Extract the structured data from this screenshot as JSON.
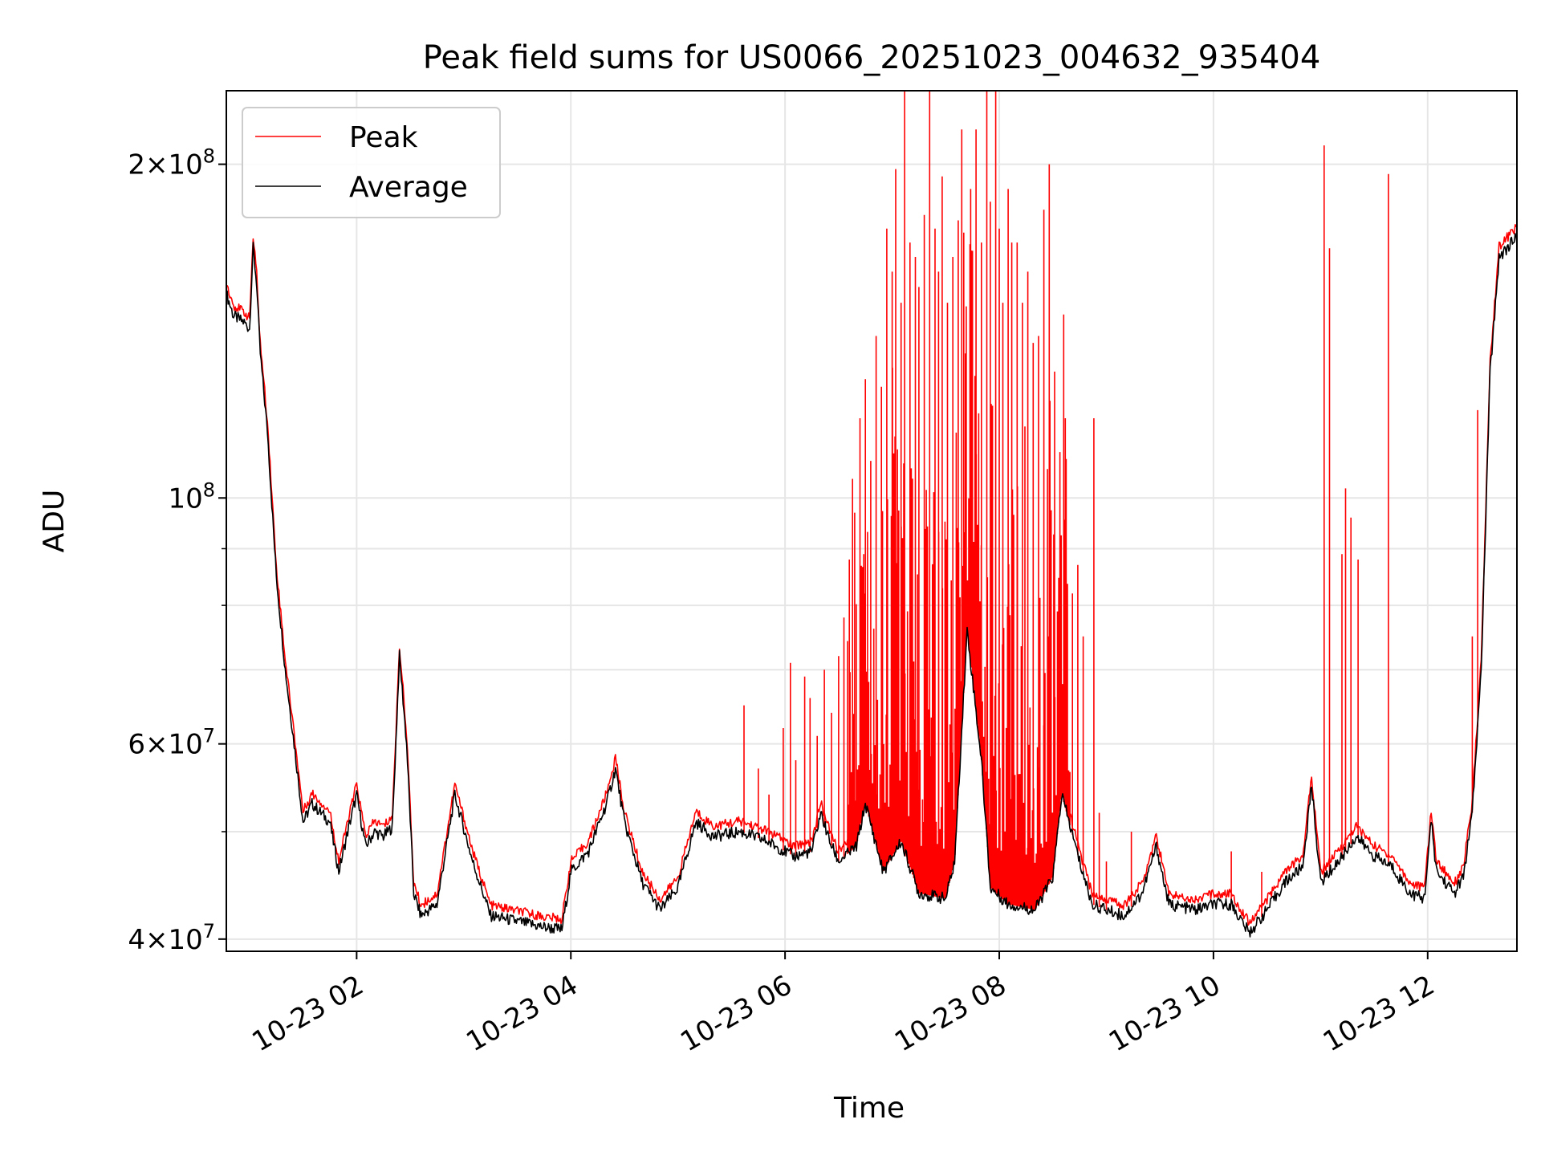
{
  "chart_data": {
    "type": "line",
    "title": "Peak field sums for US0066_20251023_004632_935404",
    "xlabel": "Time",
    "ylabel": "ADU",
    "yscale": "log",
    "ylim": [
      39000000,
      233000000
    ],
    "xlim": [
      "10-23 00:47",
      "10-23 12:50"
    ],
    "x_ticks": [
      {
        "value": "10-23 02:00",
        "label": "10-23 02"
      },
      {
        "value": "10-23 04:00",
        "label": "10-23 04"
      },
      {
        "value": "10-23 06:00",
        "label": "10-23 06"
      },
      {
        "value": "10-23 08:00",
        "label": "10-23 08"
      },
      {
        "value": "10-23 10:00",
        "label": "10-23 10"
      },
      {
        "value": "10-23 12:00",
        "label": "10-23 12"
      }
    ],
    "y_major_ticks": [
      {
        "value": 40000000,
        "mant": "4",
        "exp": "7"
      },
      {
        "value": 60000000,
        "mant": "6",
        "exp": "7"
      },
      {
        "value": 100000000,
        "mant": "",
        "exp": "8"
      },
      {
        "value": 200000000,
        "mant": "2",
        "exp": "8"
      }
    ],
    "y_minor_ticks": [
      50000000,
      70000000,
      80000000,
      90000000
    ],
    "grid": true,
    "legend": {
      "position": "top-left",
      "entries": [
        "Peak",
        "Average"
      ]
    },
    "colors": {
      "Peak": "#ff0000",
      "Average": "#000000"
    },
    "series": [
      {
        "name": "Average",
        "points": [
          [
            "10-23 00:47",
            153000000
          ],
          [
            "10-23 00:51",
            146000000
          ],
          [
            "10-23 00:57",
            144000000
          ],
          [
            "10-23 01:00",
            142000000
          ],
          [
            "10-23 01:02",
            168000000
          ],
          [
            "10-23 01:04",
            156000000
          ],
          [
            "10-23 01:06",
            135000000
          ],
          [
            "10-23 01:10",
            115000000
          ],
          [
            "10-23 01:15",
            85000000
          ],
          [
            "10-23 01:20",
            70000000
          ],
          [
            "10-23 01:25",
            60000000
          ],
          [
            "10-23 01:30",
            51000000
          ],
          [
            "10-23 01:35",
            53000000
          ],
          [
            "10-23 01:40",
            52000000
          ],
          [
            "10-23 01:45",
            51000000
          ],
          [
            "10-23 01:50",
            46000000
          ],
          [
            "10-23 01:55",
            50000000
          ],
          [
            "10-23 02:00",
            54000000
          ],
          [
            "10-23 02:05",
            48500000
          ],
          [
            "10-23 02:10",
            50000000
          ],
          [
            "10-23 02:15",
            49500000
          ],
          [
            "10-23 02:20",
            50500000
          ],
          [
            "10-23 02:24",
            72000000
          ],
          [
            "10-23 02:28",
            60000000
          ],
          [
            "10-23 02:32",
            44000000
          ],
          [
            "10-23 02:36",
            42000000
          ],
          [
            "10-23 02:45",
            43000000
          ],
          [
            "10-23 02:55",
            54000000
          ],
          [
            "10-23 03:05",
            47000000
          ],
          [
            "10-23 03:15",
            42000000
          ],
          [
            "10-23 03:30",
            41500000
          ],
          [
            "10-23 03:45",
            41000000
          ],
          [
            "10-23 03:55",
            40800000
          ],
          [
            "10-23 04:00",
            46000000
          ],
          [
            "10-23 04:10",
            48000000
          ],
          [
            "10-23 04:20",
            53000000
          ],
          [
            "10-23 04:25",
            57000000
          ],
          [
            "10-23 04:30",
            51000000
          ],
          [
            "10-23 04:40",
            45000000
          ],
          [
            "10-23 04:50",
            42500000
          ],
          [
            "10-23 05:00",
            44500000
          ],
          [
            "10-23 05:10",
            51000000
          ],
          [
            "10-23 05:20",
            49500000
          ],
          [
            "10-23 05:35",
            50000000
          ],
          [
            "10-23 05:50",
            49000000
          ],
          [
            "10-23 06:05",
            47500000
          ],
          [
            "10-23 06:15",
            48000000
          ],
          [
            "10-23 06:20",
            52000000
          ],
          [
            "10-23 06:25",
            49000000
          ],
          [
            "10-23 06:30",
            47000000
          ],
          [
            "10-23 06:40",
            48500000
          ],
          [
            "10-23 06:45",
            53000000
          ],
          [
            "10-23 06:55",
            46000000
          ],
          [
            "10-23 07:05",
            49000000
          ],
          [
            "10-23 07:15",
            44000000
          ],
          [
            "10-23 07:30",
            43500000
          ],
          [
            "10-23 07:35",
            47000000
          ],
          [
            "10-23 07:42",
            76000000
          ],
          [
            "10-23 07:50",
            58000000
          ],
          [
            "10-23 07:55",
            44500000
          ],
          [
            "10-23 08:05",
            43000000
          ],
          [
            "10-23 08:20",
            42500000
          ],
          [
            "10-23 08:30",
            45500000
          ],
          [
            "10-23 08:35",
            54000000
          ],
          [
            "10-23 08:45",
            47000000
          ],
          [
            "10-23 08:52",
            43000000
          ],
          [
            "10-23 09:00",
            42500000
          ],
          [
            "10-23 09:10",
            42000000
          ],
          [
            "10-23 09:20",
            44000000
          ],
          [
            "10-23 09:28",
            48500000
          ],
          [
            "10-23 09:35",
            43000000
          ],
          [
            "10-23 09:50",
            42500000
          ],
          [
            "10-23 10:00",
            43000000
          ],
          [
            "10-23 10:10",
            43000000
          ],
          [
            "10-23 10:20",
            40500000
          ],
          [
            "10-23 10:30",
            42500000
          ],
          [
            "10-23 10:40",
            45000000
          ],
          [
            "10-23 10:50",
            46500000
          ],
          [
            "10-23 10:55",
            55000000
          ],
          [
            "10-23 11:00",
            45000000
          ],
          [
            "10-23 11:10",
            47000000
          ],
          [
            "10-23 11:20",
            49500000
          ],
          [
            "10-23 11:30",
            47500000
          ],
          [
            "10-23 11:40",
            46500000
          ],
          [
            "10-23 11:50",
            44000000
          ],
          [
            "10-23 11:58",
            43500000
          ],
          [
            "10-23 12:02",
            51000000
          ],
          [
            "10-23 12:05",
            46000000
          ],
          [
            "10-23 12:15",
            44000000
          ],
          [
            "10-23 12:20",
            45500000
          ],
          [
            "10-23 12:25",
            52000000
          ],
          [
            "10-23 12:30",
            70000000
          ],
          [
            "10-23 12:35",
            130000000
          ],
          [
            "10-23 12:40",
            165000000
          ],
          [
            "10-23 12:50",
            172000000
          ]
        ]
      },
      {
        "name": "Peak",
        "spikes": [
          [
            "10-23 05:37",
            65000000
          ],
          [
            "10-23 05:45",
            57000000
          ],
          [
            "10-23 05:51",
            54000000
          ],
          [
            "10-23 05:59",
            62000000
          ],
          [
            "10-23 06:03",
            71000000
          ],
          [
            "10-23 06:06",
            58000000
          ],
          [
            "10-23 06:11",
            69000000
          ],
          [
            "10-23 06:14",
            66000000
          ],
          [
            "10-23 06:18",
            61000000
          ],
          [
            "10-23 06:22",
            70000000
          ],
          [
            "10-23 06:26",
            64000000
          ],
          [
            "10-23 06:30",
            72000000
          ],
          [
            "10-23 06:33",
            78000000
          ],
          [
            "10-23 06:36",
            88000000
          ],
          [
            "10-23 06:39",
            97000000
          ],
          [
            "10-23 06:42",
            118000000
          ],
          [
            "10-23 06:45",
            128000000
          ],
          [
            "10-23 06:48",
            108000000
          ],
          [
            "10-23 06:51",
            140000000
          ],
          [
            "10-23 06:54",
            126000000
          ],
          [
            "10-23 06:57",
            175000000
          ],
          [
            "10-23 07:00",
            160000000
          ],
          [
            "10-23 07:02",
            198000000
          ],
          [
            "10-23 07:05",
            150000000
          ],
          [
            "10-23 07:07",
            233000000
          ],
          [
            "10-23 07:10",
            170000000
          ],
          [
            "10-23 07:13",
            165000000
          ],
          [
            "10-23 07:15",
            155000000
          ],
          [
            "10-23 07:18",
            180000000
          ],
          [
            "10-23 07:21",
            233000000
          ],
          [
            "10-23 07:24",
            175000000
          ],
          [
            "10-23 07:26",
            160000000
          ],
          [
            "10-23 07:28",
            195000000
          ],
          [
            "10-23 07:31",
            150000000
          ],
          [
            "10-23 07:34",
            165000000
          ],
          [
            "10-23 07:37",
            178000000
          ],
          [
            "10-23 07:39",
            215000000
          ],
          [
            "10-23 07:41",
            135000000
          ],
          [
            "10-23 07:44",
            190000000
          ],
          [
            "10-23 07:47",
            215000000
          ],
          [
            "10-23 07:50",
            170000000
          ],
          [
            "10-23 07:53",
            233000000
          ],
          [
            "10-23 07:55",
            185000000
          ],
          [
            "10-23 07:58",
            233000000
          ],
          [
            "10-23 08:00",
            175000000
          ],
          [
            "10-23 08:02",
            150000000
          ],
          [
            "10-23 08:05",
            190000000
          ],
          [
            "10-23 08:07",
            170000000
          ],
          [
            "10-23 08:10",
            170000000
          ],
          [
            "10-23 08:13",
            150000000
          ],
          [
            "10-23 08:16",
            160000000
          ],
          [
            "10-23 08:19",
            138000000
          ],
          [
            "10-23 08:22",
            140000000
          ],
          [
            "10-23 08:25",
            182000000
          ],
          [
            "10-23 08:28",
            200000000
          ],
          [
            "10-23 08:31",
            130000000
          ],
          [
            "10-23 08:34",
            110000000
          ],
          [
            "10-23 08:37",
            118000000
          ],
          [
            "10-23 08:41",
            82000000
          ],
          [
            "10-23 08:44",
            87000000
          ],
          [
            "10-23 08:47",
            75000000
          ],
          [
            "10-23 08:53",
            118000000
          ],
          [
            "10-23 08:56",
            52000000
          ],
          [
            "10-23 09:00",
            47000000
          ],
          [
            "10-23 09:14",
            50000000
          ],
          [
            "10-23 10:10",
            48000000
          ],
          [
            "10-23 10:27",
            46000000
          ],
          [
            "10-23 11:02",
            208000000
          ],
          [
            "10-23 11:05",
            168000000
          ],
          [
            "10-23 11:12",
            89000000
          ],
          [
            "10-23 11:14",
            102000000
          ],
          [
            "10-23 11:17",
            96000000
          ],
          [
            "10-23 11:21",
            88000000
          ],
          [
            "10-23 11:38",
            196000000
          ],
          [
            "10-23 12:25",
            75000000
          ],
          [
            "10-23 12:28",
            120000000
          ]
        ]
      }
    ]
  }
}
